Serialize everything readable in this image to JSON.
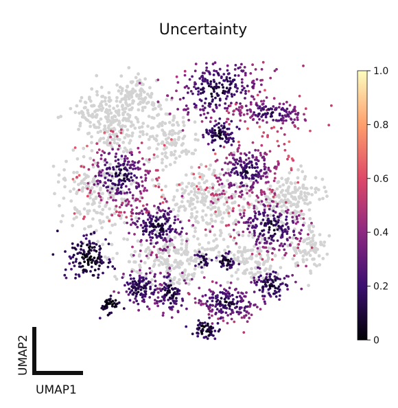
{
  "chart_data": {
    "type": "scatter",
    "title": "Uncertainty",
    "xlabel": "UMAP1",
    "ylabel": "UMAP2",
    "axes": "none (scale bar only)",
    "colormap": "magma",
    "colorbar": {
      "min": 0,
      "max": 1.0,
      "ticks": [
        0,
        0.2,
        0.4,
        0.6,
        0.8,
        1.0
      ],
      "tick_labels": [
        "0",
        "0.2",
        "0.4",
        "0.6",
        "0.8",
        "1.0"
      ],
      "placement": "right"
    },
    "background_color": "#d3d3d3",
    "colors": {
      "stop0": "#000004",
      "stop1": "#3b0f70",
      "stop2": "#8c2981",
      "stop3": "#de4968",
      "stop4": "#fe9f6d",
      "stop5": "#fcfdbf"
    }
  }
}
